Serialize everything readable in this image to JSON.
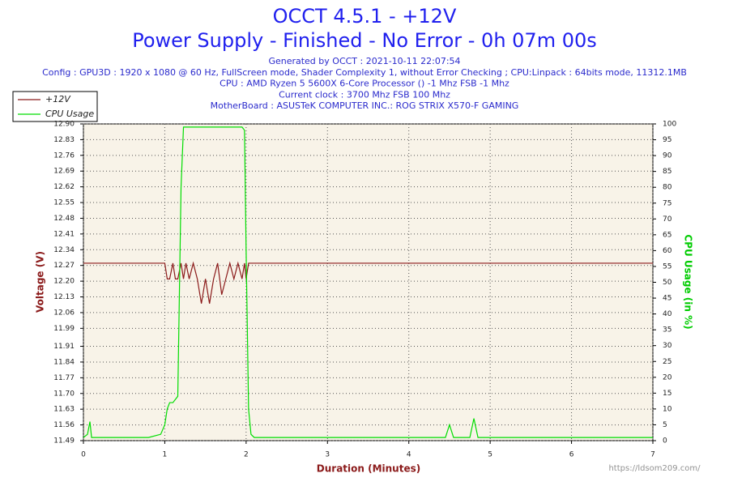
{
  "chart_data": {
    "type": "line",
    "title": "OCCT 4.5.1 - +12V",
    "subtitle": "Power Supply - Finished - No Error - 0h 07m 00s",
    "info": [
      "Generated by OCCT : 2021-10-11 22:07:54",
      "Config : GPU3D : 1920 x 1080 @ 60 Hz, FullScreen mode, Shader Complexity 1, without Error Checking ; CPU:Linpack : 64bits mode, 11312.1MB",
      "CPU : AMD Ryzen 5 5600X 6-Core Processor () -1 Mhz FSB -1 Mhz",
      "Current clock : 3700 Mhz FSB 100 Mhz",
      "MotherBoard : ASUSTeK COMPUTER INC.: ROG STRIX X570-F GAMING"
    ],
    "x_label": "Duration (Minutes)",
    "y_label": "Voltage (V)",
    "y2_label": "CPU Usage (in %)",
    "watermark": "https://ldsom209.com/",
    "x": [
      0,
      0.05,
      0.08,
      0.1,
      0.2,
      0.4,
      0.6,
      0.8,
      0.95,
      1.0,
      1.03,
      1.06,
      1.1,
      1.13,
      1.16,
      1.2,
      1.23,
      1.26,
      1.3,
      1.35,
      1.4,
      1.45,
      1.5,
      1.55,
      1.6,
      1.65,
      1.7,
      1.75,
      1.8,
      1.85,
      1.9,
      1.95,
      1.98,
      2.0,
      2.03,
      2.06,
      2.1,
      2.5,
      3.0,
      3.5,
      4.0,
      4.45,
      4.5,
      4.55,
      4.75,
      4.8,
      4.85,
      5.5,
      6.0,
      6.5,
      7.0
    ],
    "series": [
      {
        "name": "+12V",
        "color": "#8b1a1a",
        "values": [
          12.28,
          12.28,
          12.28,
          12.28,
          12.28,
          12.28,
          12.28,
          12.28,
          12.28,
          12.28,
          12.21,
          12.21,
          12.28,
          12.21,
          12.21,
          12.28,
          12.21,
          12.28,
          12.21,
          12.28,
          12.21,
          12.1,
          12.21,
          12.1,
          12.21,
          12.28,
          12.14,
          12.21,
          12.28,
          12.21,
          12.28,
          12.21,
          12.28,
          12.21,
          12.28,
          12.28,
          12.28,
          12.28,
          12.28,
          12.28,
          12.28,
          12.28,
          12.28,
          12.28,
          12.28,
          12.28,
          12.28,
          12.28,
          12.28,
          12.28,
          12.28
        ]
      },
      {
        "name": "CPU Usage",
        "color": "#00dd00",
        "axis": "y2",
        "values": [
          1,
          2,
          6,
          1,
          1,
          1,
          1,
          1,
          2,
          5,
          10,
          12,
          12,
          13,
          14,
          80,
          99,
          99,
          99,
          99,
          99,
          99,
          99,
          99,
          99,
          99,
          99,
          99,
          99,
          99,
          99,
          99,
          98,
          60,
          10,
          2,
          1,
          1,
          1,
          1,
          1,
          1,
          5,
          1,
          1,
          7,
          1,
          1,
          1,
          1,
          1
        ]
      }
    ],
    "xlim": [
      0,
      7
    ],
    "xticks": [
      0,
      1,
      2,
      3,
      4,
      5,
      6,
      7
    ],
    "ylim": [
      11.49,
      12.9
    ],
    "yticks": [
      {
        "value": 12.9,
        "label": "12.90"
      },
      12.83,
      12.76,
      12.69,
      12.62,
      12.55,
      12.48,
      12.41,
      12.34,
      12.27,
      {
        "value": 12.2,
        "label": "12.20"
      },
      12.13,
      12.06,
      11.99,
      11.91,
      11.84,
      11.77,
      {
        "value": 11.7,
        "label": "11.70"
      },
      11.63,
      11.56,
      11.49
    ],
    "y2lim": [
      0,
      100
    ],
    "y2ticks": [
      0,
      5,
      10,
      15,
      20,
      25,
      30,
      35,
      40,
      45,
      50,
      55,
      60,
      65,
      70,
      75,
      80,
      85,
      90,
      95,
      100
    ],
    "grid": true
  }
}
